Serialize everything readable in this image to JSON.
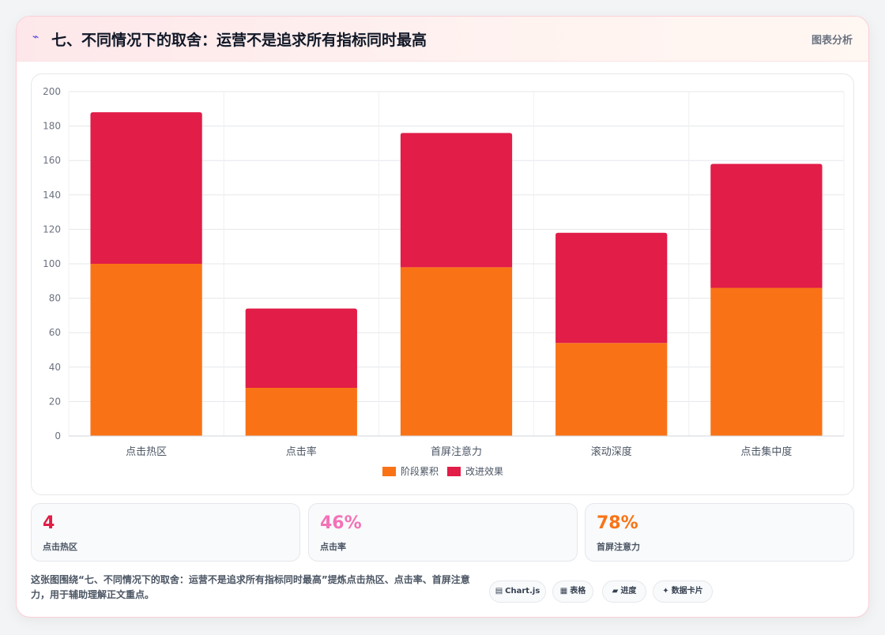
{
  "header": {
    "icon": "lightning-icon",
    "title": "七、不同情况下的取舍：运营不是追求所有指标同时最高",
    "analysis_label": "图表分析"
  },
  "chart_data": {
    "type": "bar",
    "stacked": true,
    "categories": [
      "点击热区",
      "点击率",
      "首屏注意力",
      "滚动深度",
      "点击集中度"
    ],
    "series": [
      {
        "name": "阶段累积",
        "color": "#f97316",
        "values": [
          100,
          28,
          98,
          54,
          86
        ]
      },
      {
        "name": "改进效果",
        "color": "#e11d48",
        "values": [
          88,
          46,
          78,
          64,
          72
        ]
      }
    ],
    "ylim": [
      0,
      200
    ],
    "yticks": [
      0,
      20,
      40,
      60,
      80,
      100,
      120,
      140,
      160,
      180,
      200
    ],
    "grid": true,
    "legend_position": "bottom-center",
    "title": "",
    "xlabel": "",
    "ylabel": ""
  },
  "stats": [
    {
      "value": "4",
      "label": "点击热区",
      "color": "#e11d48"
    },
    {
      "value": "46%",
      "label": "点击率",
      "color": "#f472b6"
    },
    {
      "value": "78%",
      "label": "首屏注意力",
      "color": "#f97316"
    }
  ],
  "description": "这张图围绕“七、不同情况下的取舍：运营不是追求所有指标同时最高”提炼点击热区、点击率、首屏注意力，用于辅助理解正文重点。",
  "tags": [
    {
      "icon": "▤",
      "label": "Chart.js"
    },
    {
      "icon": "▦",
      "label": "表格"
    },
    {
      "icon": "▰",
      "label": "进度"
    },
    {
      "icon": "✦",
      "label": "数据卡片"
    }
  ]
}
